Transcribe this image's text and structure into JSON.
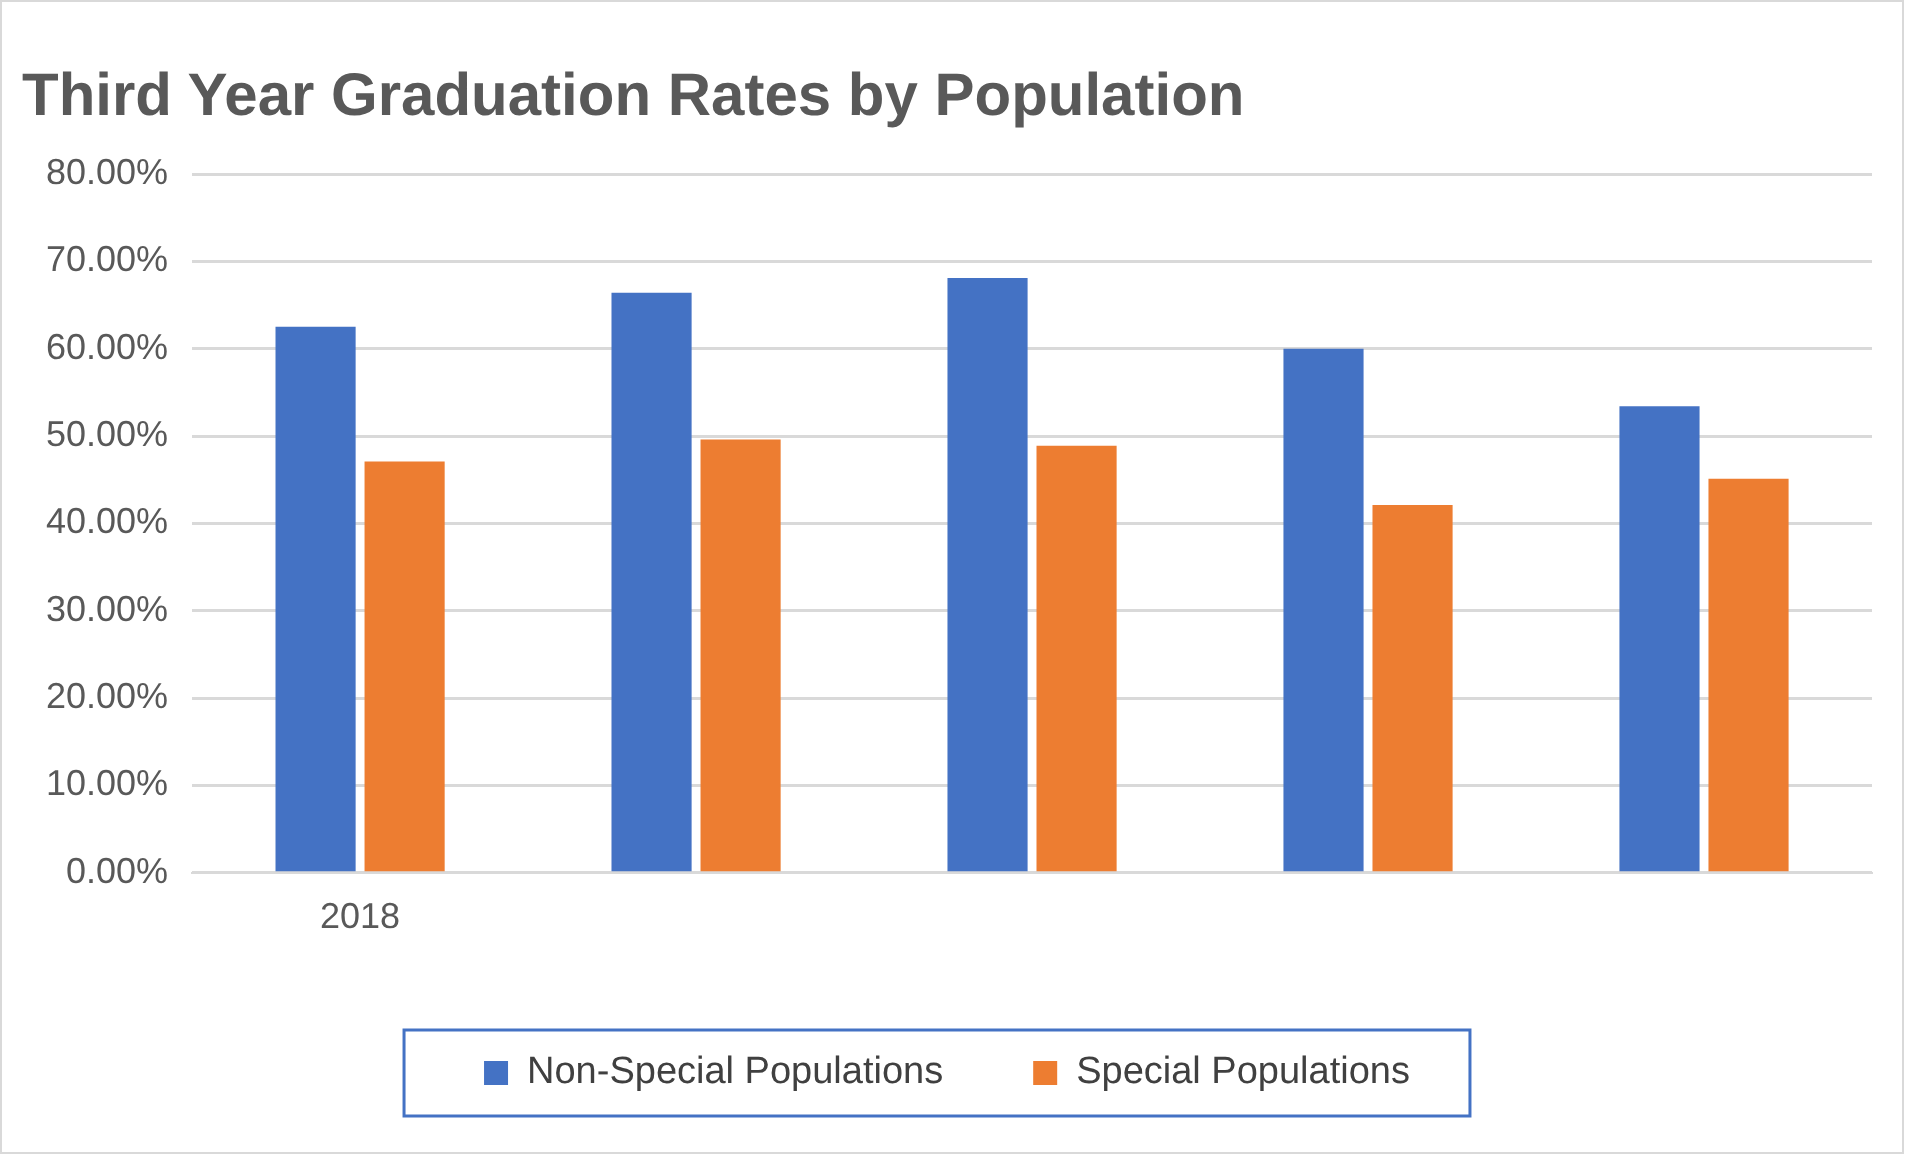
{
  "chart_data": {
    "type": "bar",
    "title": "Third Year Graduation Rates by Population",
    "categories": [
      "2018",
      null,
      null,
      null,
      null
    ],
    "series": [
      {
        "name": "Non-Special Populations",
        "color": "#4472c4",
        "values": [
          62.5,
          66.4,
          68.1,
          60.0,
          53.4
        ]
      },
      {
        "name": "Special Populations",
        "color": "#ed7d31",
        "values": [
          47.1,
          49.6,
          48.9,
          42.1,
          45.1
        ]
      }
    ],
    "ylim": [
      0,
      80
    ],
    "yticks": [
      {
        "value": 0,
        "label": "0.00%"
      },
      {
        "value": 10,
        "label": "10.00%"
      },
      {
        "value": 20,
        "label": "20.00%"
      },
      {
        "value": 30,
        "label": "30.00%"
      },
      {
        "value": 40,
        "label": "40.00%"
      },
      {
        "value": 50,
        "label": "50.00%"
      },
      {
        "value": 60,
        "label": "60.00%"
      },
      {
        "value": 70,
        "label": "70.00%"
      },
      {
        "value": 80,
        "label": "80.00%"
      }
    ],
    "grid": "y",
    "legend": "bottom"
  }
}
